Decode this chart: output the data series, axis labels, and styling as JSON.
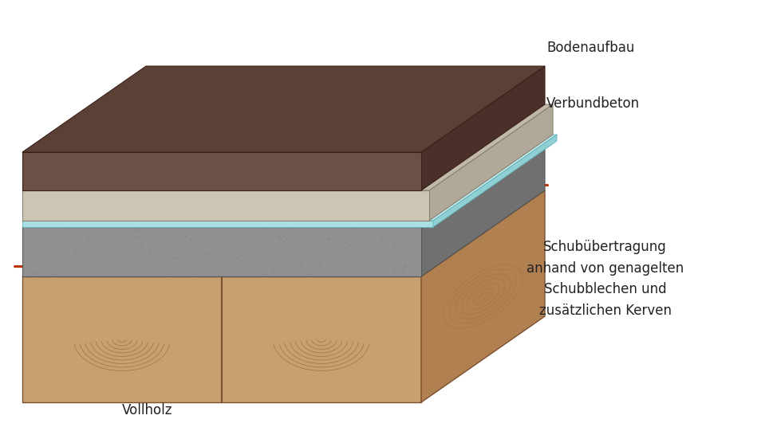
{
  "labels": {
    "bodenaufbau": "Bodenaufbau",
    "verbundbeton": "Verbundbeton",
    "vollholz": "Vollholz",
    "schub": "Schubübertragung\nanhand von genagelten\nSchubblechen und\nzusätzlichen Kerven"
  },
  "colors": {
    "background": "#ffffff",
    "bodenaufbau_top": "#5a4035",
    "bodenaufbau_front": "#6b5045",
    "bodenaufbau_right": "#4a3028",
    "screed_top": "#c0b8a8",
    "screed_front": "#ccc4b4",
    "screed_right": "#b0a898",
    "membrane_top": "#c0eeee",
    "membrane_front": "#a8e0e4",
    "membrane_right": "#90d0d4",
    "concrete_top": "#888888",
    "concrete_front": "#909090",
    "concrete_right": "#707070",
    "wood_top": "#deb887",
    "wood_front": "#c8a070",
    "wood_right": "#b08050",
    "wood_grain_dark": "#a07040",
    "wood_grain_light": "#e8c898",
    "rebar_color": "#bb3300",
    "plate_color": "#d0d0d0",
    "plate_shadow": "#a0a0a0",
    "text_color": "#222222"
  }
}
